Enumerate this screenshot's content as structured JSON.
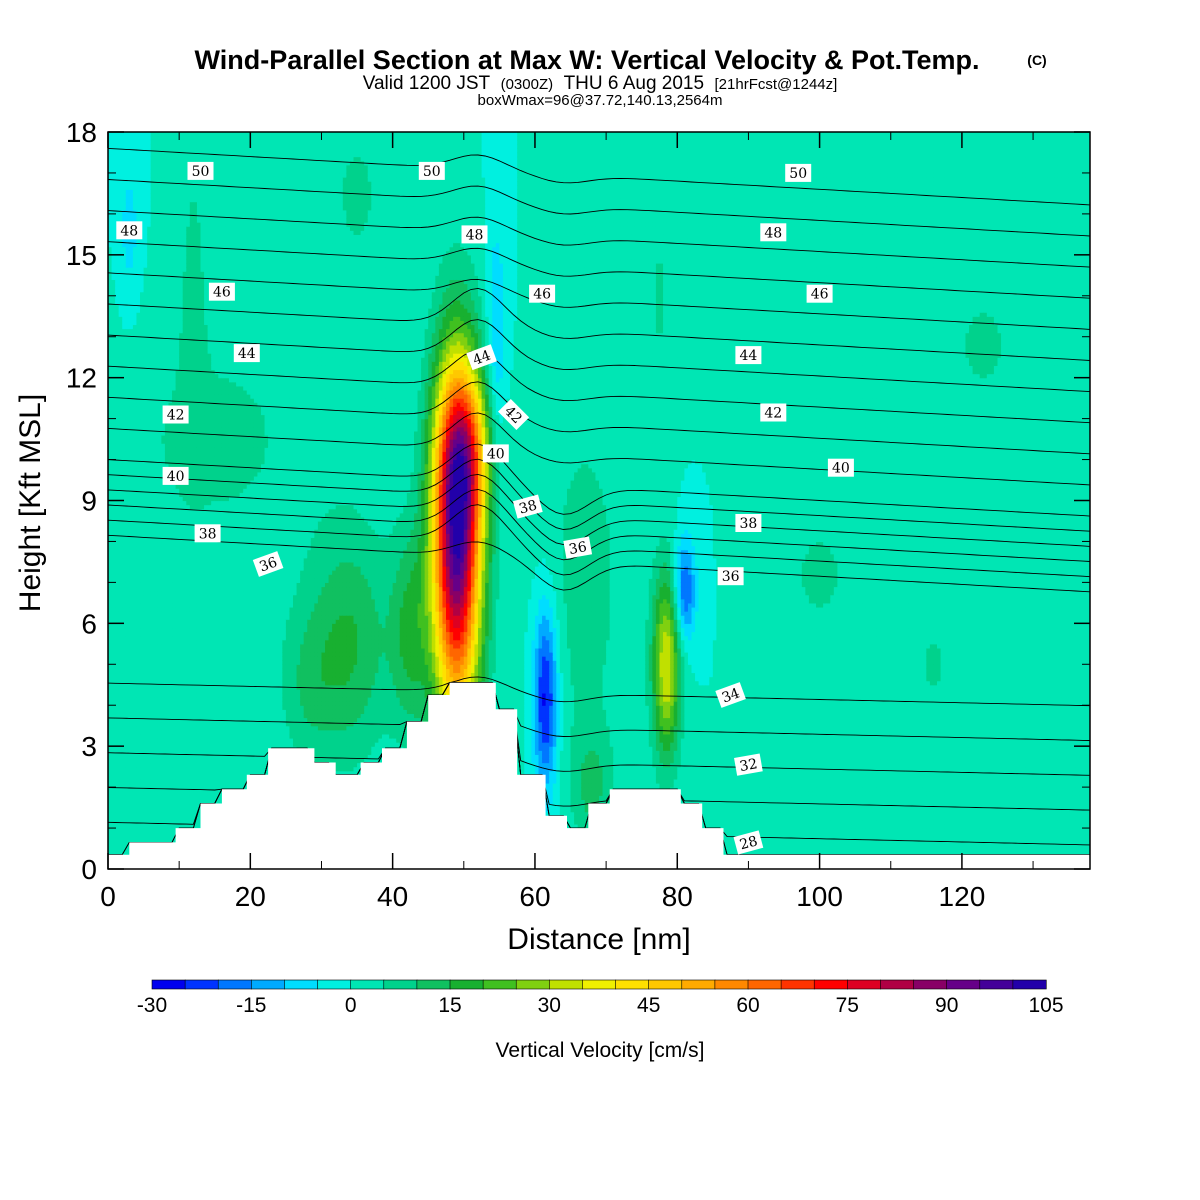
{
  "title": {
    "main": "Wind-Parallel Section at Max W: Vertical Velocity & Pot.Temp.",
    "copyright": "(C)",
    "valid_prefix": "Valid 1200 JST",
    "valid_utc": "(0300Z)",
    "valid_date": "THU 6 Aug 2015",
    "forecast": "[21hrFcst@1244z]",
    "boxinfo": "boxWmax=96@37.72,140.13,2564m"
  },
  "chart_data": {
    "type": "heatmap",
    "xlabel": "Distance [nm]",
    "ylabel": "Height [Kft MSL]",
    "xlim": [
      0,
      138
    ],
    "ylim": [
      0,
      18
    ],
    "x_ticks": [
      0,
      20,
      40,
      60,
      80,
      100,
      120
    ],
    "y_ticks": [
      0,
      3,
      6,
      9,
      12,
      15,
      18
    ],
    "colorbar": {
      "title": "Vertical Velocity [cm/s]",
      "levels": [
        -30,
        -25,
        -20,
        -15,
        -10,
        -5,
        0,
        5,
        10,
        15,
        20,
        25,
        30,
        35,
        40,
        45,
        50,
        55,
        60,
        65,
        70,
        75,
        80,
        85,
        90,
        95,
        100,
        105
      ],
      "colors": [
        "#0000ee",
        "#0033ff",
        "#0077ff",
        "#00aaff",
        "#00ddff",
        "#00f0e0",
        "#00e6b4",
        "#00d28c",
        "#10c060",
        "#18b030",
        "#40c020",
        "#80d010",
        "#c0e000",
        "#f0f000",
        "#ffe000",
        "#ffc800",
        "#ffaa00",
        "#ff8800",
        "#ff6600",
        "#ff3300",
        "#ff0000",
        "#dd0022",
        "#b00044",
        "#880066",
        "#660088",
        "#440099",
        "#2200aa"
      ],
      "tick_values": [
        -30,
        -15,
        0,
        15,
        30,
        45,
        60,
        75,
        90,
        105
      ],
      "tick_labels": [
        "-30",
        "-15",
        "0",
        "15",
        "30",
        "45",
        "60",
        "75",
        "90",
        "105"
      ]
    },
    "background_w": 0,
    "w_features": [
      {
        "x": 49,
        "y": 8,
        "sx": 2.4,
        "sy": 3.0,
        "w": 96
      },
      {
        "x": 50.5,
        "y": 10.2,
        "sx": 2.6,
        "sy": 1.4,
        "w": 30
      },
      {
        "x": 78.5,
        "y": 5.0,
        "sx": 1.4,
        "sy": 1.6,
        "w": 35
      },
      {
        "x": 61.5,
        "y": 4.2,
        "sx": 1.2,
        "sy": 1.6,
        "w": -28
      },
      {
        "x": 81,
        "y": 6.8,
        "sx": 1.1,
        "sy": 0.9,
        "w": -22
      },
      {
        "x": 54.5,
        "y": 12.5,
        "sx": 1.0,
        "sy": 2.2,
        "w": -12
      },
      {
        "x": 3,
        "y": 15.5,
        "sx": 1.2,
        "sy": 1.5,
        "w": -7
      },
      {
        "x": 34,
        "y": 5.5,
        "sx": 4.0,
        "sy": 2.0,
        "w": 15
      },
      {
        "x": 42.5,
        "y": 5.8,
        "sx": 2.0,
        "sy": 1.8,
        "w": 15
      },
      {
        "x": 28,
        "y": 4.5,
        "sx": 3.0,
        "sy": 1.4,
        "w": 8
      },
      {
        "x": 67,
        "y": 7.0,
        "sx": 4.5,
        "sy": 3.5,
        "w": 7
      },
      {
        "x": 15,
        "y": 10.5,
        "sx": 12.0,
        "sy": 2.5,
        "w": 6
      },
      {
        "x": 35,
        "y": 16.5,
        "sx": 3.0,
        "sy": 1.5,
        "w": 6
      },
      {
        "x": 12,
        "y": 14.5,
        "sx": 1.2,
        "sy": 2.5,
        "w": 6
      },
      {
        "x": 123,
        "y": 12.8,
        "sx": 4.0,
        "sy": 1.3,
        "w": 6
      },
      {
        "x": 100,
        "y": 7.2,
        "sx": 4.0,
        "sy": 1.3,
        "w": 6
      },
      {
        "x": 77.5,
        "y": 14.0,
        "sx": 1.0,
        "sy": 1.5,
        "w": 6
      },
      {
        "x": 116,
        "y": 5.0,
        "sx": 2.0,
        "sy": 0.8,
        "w": 6
      },
      {
        "x": 68,
        "y": 2.0,
        "sx": 2.0,
        "sy": 1.0,
        "w": 10
      }
    ],
    "terrain": {
      "x": [
        0,
        3,
        3,
        9.5,
        9.5,
        13,
        13,
        16,
        16,
        19.5,
        19.5,
        22.5,
        22.5,
        29,
        29,
        32,
        32,
        35.5,
        35.5,
        38.5,
        38.5,
        42,
        42,
        45,
        45,
        48,
        48,
        54.5,
        54.5,
        57.5,
        57.5,
        61.5,
        61.5,
        64.5,
        64.5,
        67.5,
        67.5,
        70.5,
        70.5,
        80.5,
        80.5,
        83.5,
        83.5,
        86.5,
        86.5,
        138
      ],
      "h": [
        0.35,
        0.35,
        0.65,
        0.65,
        1.0,
        1.0,
        1.6,
        1.6,
        1.95,
        1.95,
        2.3,
        2.3,
        2.95,
        2.95,
        2.6,
        2.6,
        2.3,
        2.3,
        2.6,
        2.6,
        2.95,
        2.95,
        3.6,
        3.6,
        4.25,
        4.25,
        4.55,
        4.55,
        3.9,
        3.9,
        2.3,
        2.3,
        1.3,
        1.3,
        1.0,
        1.0,
        1.6,
        1.6,
        1.95,
        1.95,
        1.6,
        1.6,
        1.0,
        1.0,
        0.35,
        0.35
      ]
    },
    "theta_levels": [
      28,
      29,
      30,
      31,
      32,
      33,
      34,
      35,
      36,
      37,
      38,
      39,
      40,
      41,
      42,
      43,
      44,
      45,
      46,
      47,
      48,
      49,
      50
    ],
    "theta_labels": [
      {
        "text": "50",
        "x": 13,
        "y": 17.05,
        "angle": 0
      },
      {
        "text": "50",
        "x": 45.5,
        "y": 17.05,
        "angle": 0
      },
      {
        "text": "50",
        "x": 97,
        "y": 17.0,
        "angle": 0
      },
      {
        "text": "48",
        "x": 3,
        "y": 15.6,
        "angle": 0
      },
      {
        "text": "48",
        "x": 51.5,
        "y": 15.5,
        "angle": 0
      },
      {
        "text": "48",
        "x": 93.5,
        "y": 15.55,
        "angle": 0
      },
      {
        "text": "46",
        "x": 16,
        "y": 14.1,
        "angle": 0
      },
      {
        "text": "46",
        "x": 61,
        "y": 14.05,
        "angle": 0
      },
      {
        "text": "46",
        "x": 100,
        "y": 14.05,
        "angle": 0
      },
      {
        "text": "44",
        "x": 19.5,
        "y": 12.6,
        "angle": 0
      },
      {
        "text": "44",
        "x": 52.5,
        "y": 12.5,
        "angle": -20
      },
      {
        "text": "44",
        "x": 90,
        "y": 12.55,
        "angle": 0
      },
      {
        "text": "42",
        "x": 9.5,
        "y": 11.1,
        "angle": 0
      },
      {
        "text": "42",
        "x": 57,
        "y": 11.1,
        "angle": 45
      },
      {
        "text": "42",
        "x": 93.5,
        "y": 11.15,
        "angle": 0
      },
      {
        "text": "40",
        "x": 9.5,
        "y": 9.6,
        "angle": 0
      },
      {
        "text": "40",
        "x": 54.5,
        "y": 10.15,
        "angle": 0
      },
      {
        "text": "40",
        "x": 103,
        "y": 9.8,
        "angle": 0
      },
      {
        "text": "38",
        "x": 14,
        "y": 8.2,
        "angle": 0
      },
      {
        "text": "38",
        "x": 59,
        "y": 8.85,
        "angle": -15
      },
      {
        "text": "38",
        "x": 90,
        "y": 8.45,
        "angle": 0
      },
      {
        "text": "36",
        "x": 22.5,
        "y": 7.45,
        "angle": -20
      },
      {
        "text": "36",
        "x": 66,
        "y": 7.85,
        "angle": -10
      },
      {
        "text": "36",
        "x": 87.5,
        "y": 7.15,
        "angle": 0
      },
      {
        "text": "34",
        "x": 87.5,
        "y": 4.25,
        "angle": -20
      },
      {
        "text": "32",
        "x": 90,
        "y": 2.55,
        "angle": -10
      },
      {
        "text": "28",
        "x": 90,
        "y": 0.65,
        "angle": -15
      }
    ]
  }
}
